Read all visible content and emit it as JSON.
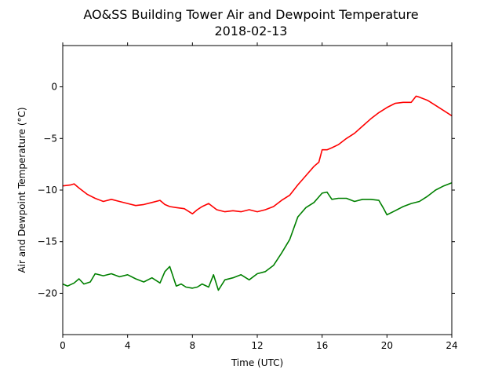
{
  "chart_data": {
    "type": "line",
    "title": "AO&SS Building Tower Air and Dewpoint Temperature",
    "subtitle": "2018-02-13",
    "xlabel": "Time (UTC)",
    "ylabel": "Air and Dewpoint Temperature (°C)",
    "xlim": [
      0,
      24
    ],
    "ylim": [
      -24,
      4
    ],
    "xticks": [
      0,
      4,
      8,
      12,
      16,
      20,
      24
    ],
    "yticks": [
      -20,
      -15,
      -10,
      -5,
      0
    ],
    "xtick_labels": [
      "0",
      "4",
      "8",
      "12",
      "16",
      "20",
      "24"
    ],
    "ytick_labels": [
      "−20",
      "−15",
      "−10",
      "−5",
      "0"
    ],
    "grid": false,
    "series": [
      {
        "color": "#ff0000",
        "x": [
          0,
          0.5,
          0.7,
          1,
          1.5,
          2,
          2.5,
          3,
          3.5,
          4,
          4.5,
          5,
          5.5,
          6,
          6.3,
          6.6,
          7,
          7.5,
          8,
          8.3,
          8.6,
          9,
          9.5,
          10,
          10.5,
          11,
          11.5,
          12,
          12.5,
          13,
          13.5,
          14,
          14.5,
          15,
          15.5,
          15.8,
          16,
          16.3,
          16.6,
          17,
          17.5,
          18,
          18.5,
          19,
          19.5,
          20,
          20.5,
          21,
          21.5,
          21.8,
          22,
          22.5,
          23,
          23.5,
          24
        ],
        "values": [
          -9.6,
          -9.5,
          -9.4,
          -9.8,
          -10.4,
          -10.8,
          -11.1,
          -10.9,
          -11.1,
          -11.3,
          -11.5,
          -11.4,
          -11.2,
          -11.0,
          -11.4,
          -11.6,
          -11.7,
          -11.8,
          -12.3,
          -11.9,
          -11.6,
          -11.3,
          -11.9,
          -12.1,
          -12.0,
          -12.1,
          -11.9,
          -12.1,
          -11.9,
          -11.6,
          -11.0,
          -10.5,
          -9.5,
          -8.6,
          -7.7,
          -7.3,
          -6.1,
          -6.1,
          -5.9,
          -5.6,
          -5.0,
          -4.5,
          -3.8,
          -3.1,
          -2.5,
          -2.0,
          -1.6,
          -1.5,
          -1.5,
          -0.9,
          -1.0,
          -1.3,
          -1.8,
          -2.3,
          -2.8
        ]
      },
      {
        "color": "#008000",
        "x": [
          0,
          0.3,
          0.7,
          1,
          1.3,
          1.7,
          2,
          2.5,
          3,
          3.5,
          4,
          4.5,
          5,
          5.5,
          6,
          6.3,
          6.6,
          7,
          7.3,
          7.6,
          8,
          8.3,
          8.6,
          9,
          9.3,
          9.6,
          10,
          10.5,
          11,
          11.5,
          12,
          12.5,
          13,
          13.5,
          14,
          14.5,
          15,
          15.5,
          16,
          16.3,
          16.6,
          17,
          17.5,
          18,
          18.5,
          19,
          19.5,
          19.8,
          20,
          20.5,
          21,
          21.5,
          22,
          22.5,
          23,
          23.5,
          24
        ],
        "values": [
          -19.1,
          -19.3,
          -19.0,
          -18.6,
          -19.1,
          -18.9,
          -18.1,
          -18.3,
          -18.1,
          -18.4,
          -18.2,
          -18.6,
          -18.9,
          -18.5,
          -19.0,
          -17.9,
          -17.4,
          -19.3,
          -19.1,
          -19.4,
          -19.5,
          -19.4,
          -19.1,
          -19.4,
          -18.2,
          -19.7,
          -18.7,
          -18.5,
          -18.2,
          -18.7,
          -18.1,
          -17.9,
          -17.3,
          -16.1,
          -14.8,
          -12.6,
          -11.7,
          -11.2,
          -10.3,
          -10.2,
          -10.9,
          -10.8,
          -10.8,
          -11.1,
          -10.9,
          -10.9,
          -11.0,
          -11.8,
          -12.4,
          -12.0,
          -11.6,
          -11.3,
          -11.1,
          -10.6,
          -10.0,
          -9.6,
          -9.3
        ]
      }
    ]
  }
}
